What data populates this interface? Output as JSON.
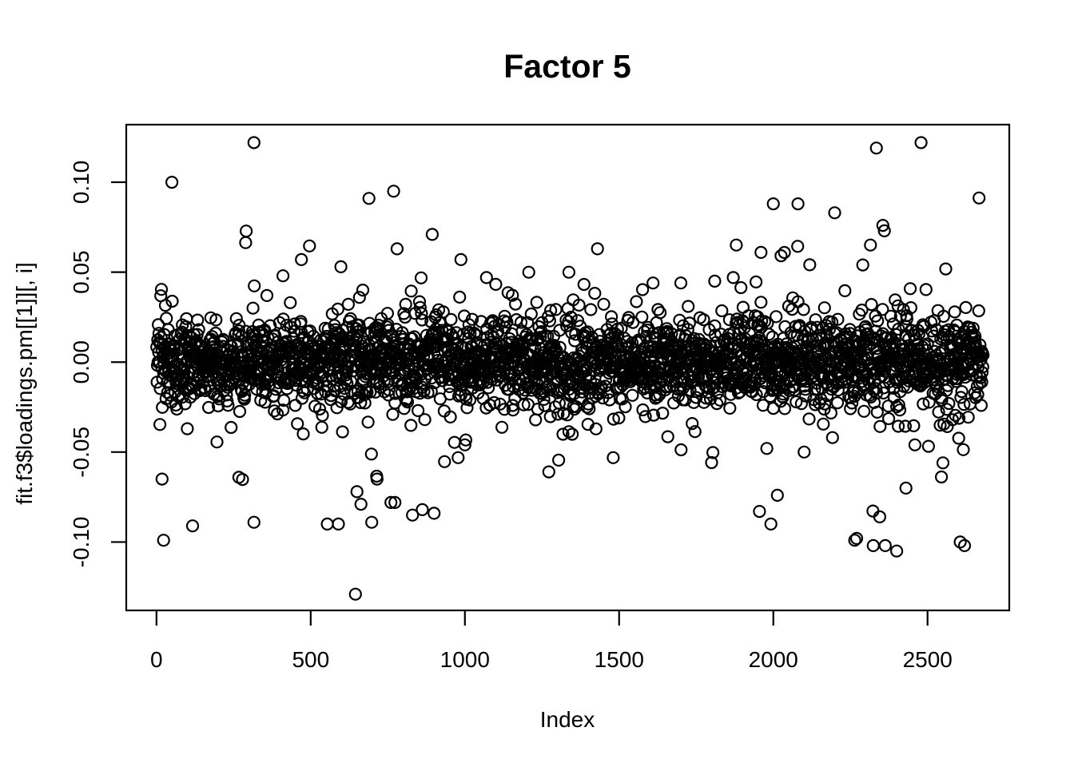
{
  "figure": {
    "background_color": "#ffffff",
    "foreground_color": "#000000"
  },
  "chart_data": {
    "type": "scatter",
    "title": "Factor 5",
    "xlabel": "Index",
    "ylabel": "fit.f3$loadings.pm[[1]][, i]",
    "x_tick_values": [
      0,
      500,
      1000,
      1500,
      2000,
      2500
    ],
    "x_tick_labels": [
      "0",
      "500",
      "1000",
      "1500",
      "2000",
      "2500"
    ],
    "y_tick_values": [
      -0.1,
      -0.05,
      0.0,
      0.05,
      0.1
    ],
    "y_tick_labels": [
      "-0.10",
      "-0.05",
      "0.00",
      "0.05",
      "0.10"
    ],
    "xlim": [
      -98,
      2765
    ],
    "ylim": [
      -0.138,
      0.132
    ],
    "grid": false,
    "legend": "none",
    "n_points": 2680,
    "marker": {
      "shape": "open-circle",
      "radius": 7,
      "stroke_width": 2.2,
      "color": "#000000",
      "fill": "none"
    },
    "distribution": {
      "seed": 42,
      "components": [
        {
          "weight": 0.75,
          "sd": 0.011
        },
        {
          "weight": 0.18,
          "sd": 0.017
        },
        {
          "weight": 0.06,
          "sd": 0.026
        },
        {
          "weight": 0.01,
          "sd": 0.042
        }
      ],
      "clip_abs": 0.095,
      "right_tail": {
        "from_index": 2280,
        "to_index": 2570,
        "prob": 0.25,
        "sd_scale": 1.6
      }
    },
    "outlier_points": [
      [
        18,
        -0.065
      ],
      [
        23,
        -0.099
      ],
      [
        50,
        0.1
      ],
      [
        117,
        -0.091
      ],
      [
        267,
        -0.064
      ],
      [
        316,
        0.122
      ],
      [
        316,
        -0.089
      ],
      [
        410,
        0.048
      ],
      [
        470,
        0.057
      ],
      [
        554,
        -0.09
      ],
      [
        590,
        -0.09
      ],
      [
        598,
        0.053
      ],
      [
        645,
        -0.129
      ],
      [
        650,
        -0.072
      ],
      [
        663,
        -0.079
      ],
      [
        689,
        0.091
      ],
      [
        698,
        -0.089
      ],
      [
        715,
        -0.065
      ],
      [
        760,
        -0.078
      ],
      [
        769,
        0.095
      ],
      [
        773,
        -0.078
      ],
      [
        780,
        0.063
      ],
      [
        830,
        -0.085
      ],
      [
        862,
        -0.082
      ],
      [
        894,
        0.071
      ],
      [
        900,
        -0.084
      ],
      [
        987,
        0.057
      ],
      [
        1000,
        -0.046
      ],
      [
        1207,
        0.05
      ],
      [
        1272,
        -0.061
      ],
      [
        1337,
        0.05
      ],
      [
        1430,
        0.063
      ],
      [
        1610,
        0.044
      ],
      [
        1700,
        0.044
      ],
      [
        1810,
        0.045
      ],
      [
        1870,
        0.047
      ],
      [
        1955,
        -0.083
      ],
      [
        1960,
        0.061
      ],
      [
        1979,
        -0.048
      ],
      [
        1992,
        -0.09
      ],
      [
        2000,
        0.088
      ],
      [
        2013,
        -0.074
      ],
      [
        2080,
        0.088
      ],
      [
        2100,
        -0.05
      ],
      [
        2199,
        0.083
      ],
      [
        2264,
        -0.099
      ],
      [
        2270,
        -0.098
      ],
      [
        2290,
        0.054
      ],
      [
        2324,
        -0.102
      ],
      [
        2334,
        0.119
      ],
      [
        2345,
        -0.086
      ],
      [
        2355,
        0.076
      ],
      [
        2360,
        0.073
      ],
      [
        2363,
        -0.102
      ],
      [
        2400,
        -0.105
      ],
      [
        2430,
        -0.07
      ],
      [
        2459,
        -0.046
      ],
      [
        2479,
        0.122
      ],
      [
        2550,
        -0.056
      ],
      [
        2606,
        -0.1
      ],
      [
        2620,
        -0.102
      ]
    ]
  }
}
